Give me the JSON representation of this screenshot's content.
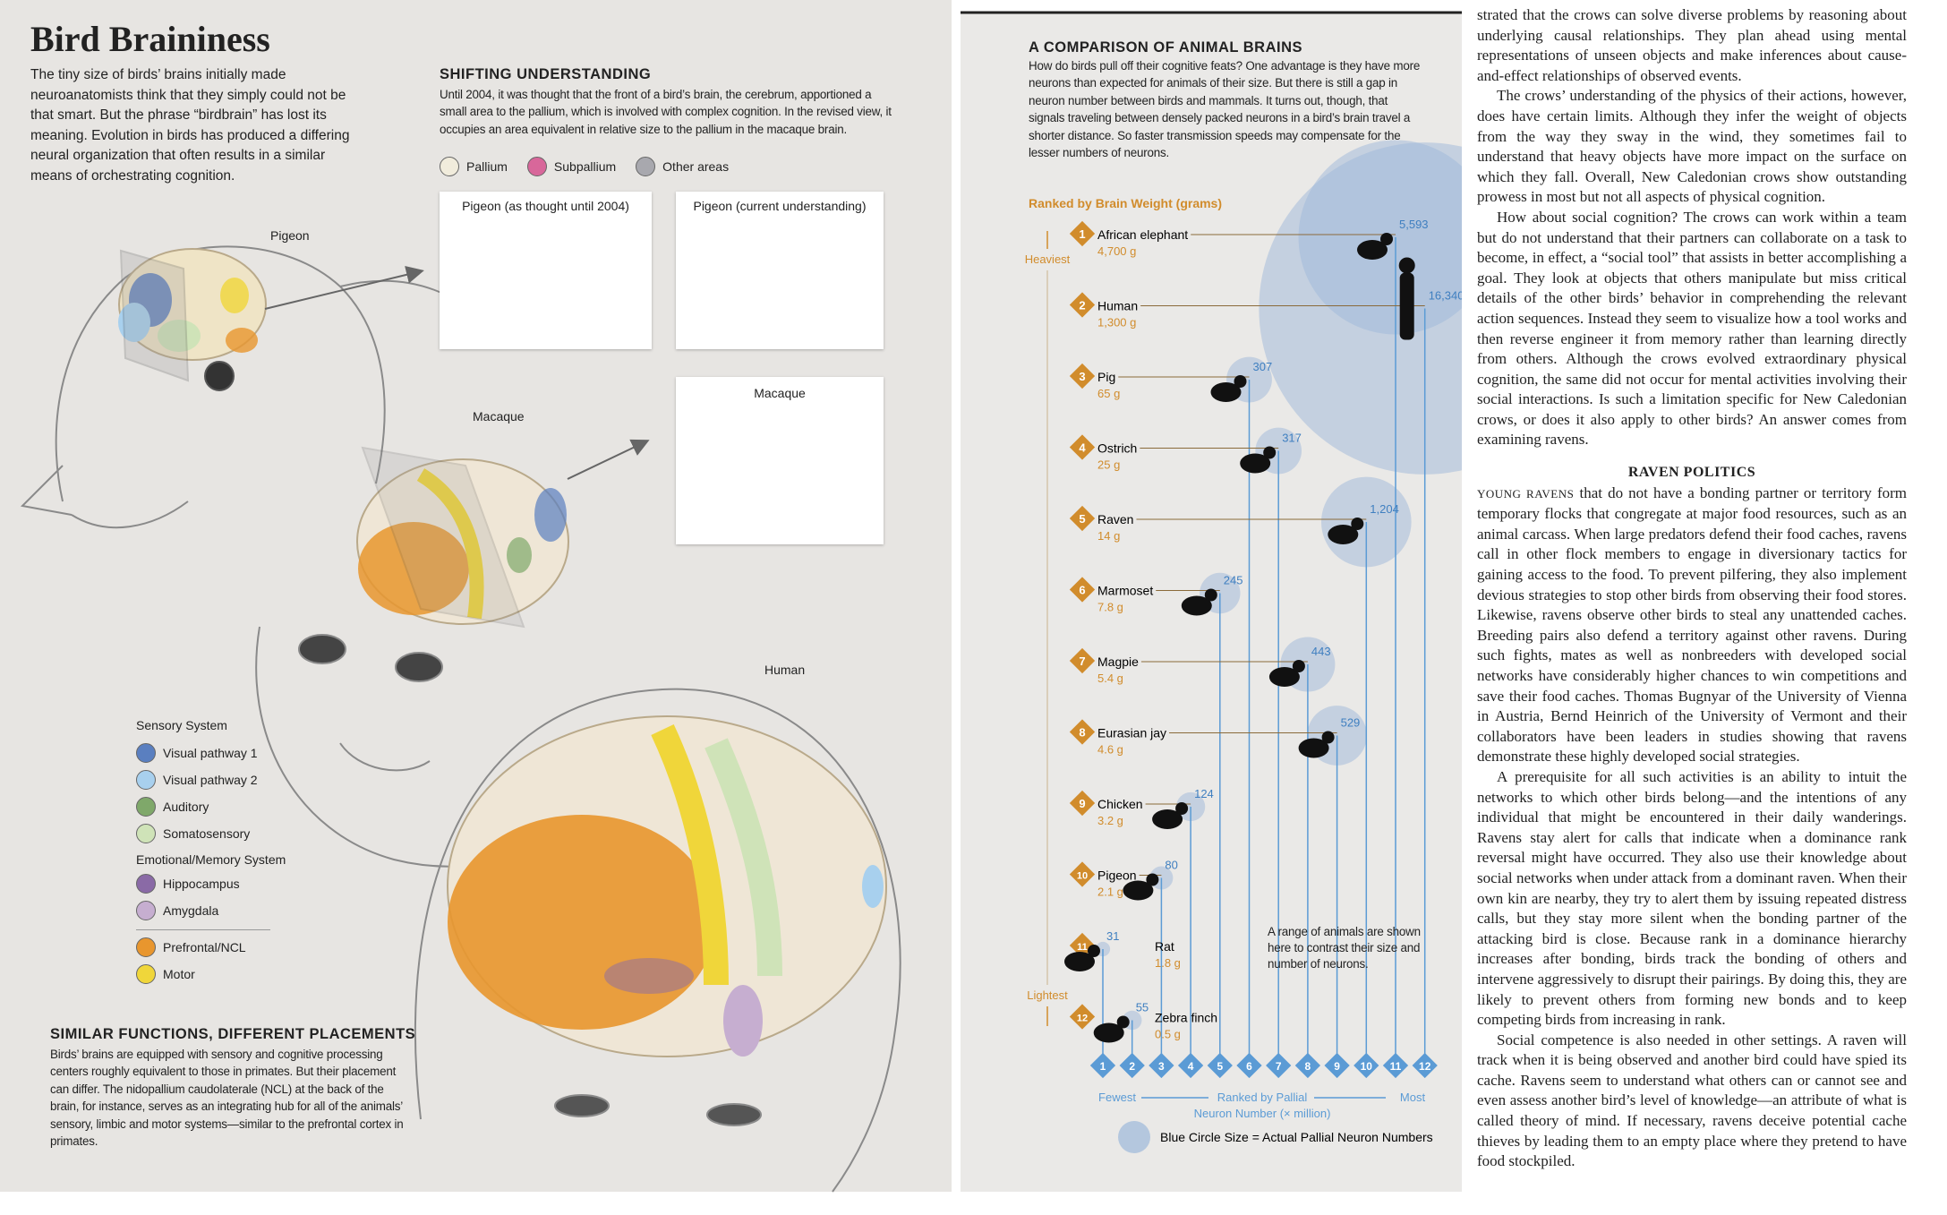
{
  "left": {
    "title": "Bird Braininess",
    "intro": "The tiny size of birds’ brains initially made neuroanatomists think that they simply could not be that smart. But the phrase “birdbrain” has lost its meaning. Evolution in birds has produced a differing neural organization that often results in a similar means of orchestrating cognition.",
    "shifting": {
      "heading": "SHIFTING UNDERSTANDING",
      "text": "Until 2004, it was thought that the front of a bird’s brain, the cerebrum, apportioned a small area to the pallium, which is involved with complex cognition. In the revised view, it occupies an area equivalent in relative size to the pallium in the macaque brain.",
      "legend": [
        {
          "label": "Pallium",
          "color": "#f1ecdc"
        },
        {
          "label": "Subpallium",
          "color": "#d8679a"
        },
        {
          "label": "Other areas",
          "color": "#a8a8ae"
        }
      ],
      "panels": [
        "Pigeon (as thought until 2004)",
        "Pigeon (current understanding)",
        "Macaque"
      ]
    },
    "labels": [
      "Pigeon",
      "Macaque",
      "Human"
    ],
    "key": {
      "sensory_heading": "Sensory System",
      "sensory": [
        {
          "label": "Visual pathway 1",
          "color": "#5a7fc0"
        },
        {
          "label": "Visual pathway 2",
          "color": "#a8d0ee"
        },
        {
          "label": "Auditory",
          "color": "#7fa86a"
        },
        {
          "label": "Somatosensory",
          "color": "#cfe3b8"
        }
      ],
      "emotional_heading": "Emotional/Memory System",
      "emotional": [
        {
          "label": "Hippocampus",
          "color": "#8a6aa6"
        },
        {
          "label": "Amygdala",
          "color": "#c6aed0"
        }
      ],
      "other": [
        {
          "label": "Prefrontal/NCL",
          "color": "#e8962e"
        },
        {
          "label": "Motor",
          "color": "#f0d63a"
        }
      ]
    },
    "similar": {
      "heading": "SIMILAR FUNCTIONS, DIFFERENT PLACEMENTS",
      "text": "Birds’ brains are equipped with sensory and cognitive processing centers roughly equivalent to those in primates. But their placement can differ. The nidopallium caudolaterale (NCL) at the back of the brain, for instance, serves as an integrating hub for all of the animals’ sensory, limbic and motor systems—similar to the prefrontal cortex in primates."
    }
  },
  "middle": {
    "heading": "A COMPARISON OF ANIMAL BRAINS",
    "text": "How do birds pull off their cognitive feats? One advantage is they have more neurons than expected for animals of their size. But there is still a gap in neuron number between birds and mammals. It turns out, though, that signals traveling between densely packed neurons in a bird’s brain travel a shorter distance. So faster transmission speeds may compensate for the lesser numbers of neurons.",
    "ranked_by": "Ranked by Brain Weight (grams)",
    "heaviest": "Heaviest",
    "lightest": "Lightest",
    "animals": [
      {
        "rank": 1,
        "name": "African elephant",
        "weight": "4,700 g",
        "neurons": {
          "value": 5593,
          "label": "5,593"
        },
        "pallial_rank": 11
      },
      {
        "rank": 2,
        "name": "Human",
        "weight": "1,300 g",
        "neurons": {
          "value": 16340,
          "label": "16,340"
        },
        "pallial_rank": 12
      },
      {
        "rank": 3,
        "name": "Pig",
        "weight": "65 g",
        "neurons": 307,
        "pallial_rank": 6
      },
      {
        "rank": 4,
        "name": "Ostrich",
        "weight": "25 g",
        "neurons": 317,
        "pallial_rank": 7
      },
      {
        "rank": 5,
        "name": "Raven",
        "weight": "14 g",
        "neurons": {
          "value": 1204,
          "label": "1,204"
        },
        "pallial_rank": 10
      },
      {
        "rank": 6,
        "name": "Marmoset",
        "weight": "7.8 g",
        "neurons": 245,
        "pallial_rank": 5
      },
      {
        "rank": 7,
        "name": "Magpie",
        "weight": "5.4 g",
        "neurons": 443,
        "pallial_rank": 8
      },
      {
        "rank": 8,
        "name": "Eurasian jay",
        "weight": "4.6 g",
        "neurons": 529,
        "pallial_rank": 9
      },
      {
        "rank": 9,
        "name": "Chicken",
        "weight": "3.2 g",
        "neurons": 124,
        "pallial_rank": 4
      },
      {
        "rank": 10,
        "name": "Pigeon",
        "weight": "2.1 g",
        "neurons": 80,
        "pallial_rank": 3
      },
      {
        "rank": 11,
        "name": "Rat",
        "weight": "1.8 g",
        "neurons": 31,
        "pallial_rank": 1
      },
      {
        "rank": 12,
        "name": "Zebra finch",
        "weight": "0.5 g",
        "neurons": 55,
        "pallial_rank": 2
      }
    ],
    "pallial_ranks": [
      1,
      2,
      3,
      4,
      5,
      6,
      7,
      8,
      9,
      10,
      11,
      12
    ],
    "fewest": "Fewest",
    "most": "Most",
    "axis_label_1": "Ranked by Pallial",
    "axis_label_2": "Neuron Number (× million)",
    "note": "A range of animals are shown here to contrast their size and number of neurons.",
    "circle_key": "Blue Circle Size = Actual Pallial Neuron Numbers"
  },
  "right": {
    "paragraphs_1": [
      "strated that the crows can solve diverse problems by reasoning about underlying causal relationships. They plan ahead using mental representations of unseen objects and make inferences about cause-and-effect relationships of observed events.",
      "The crows’ understanding of the physics of their actions, however, does have certain limits. Although they infer the weight of objects from the way they sway in the wind, they sometimes fail to understand that heavy objects have more impact on the surface on which they fall. Overall, New Caledonian crows show outstanding prowess in most but not all aspects of physical cognition.",
      "How about social cognition? The crows can work within a team but do not understand that their partners can collaborate on a task to become, in effect, a “social tool” that assists in better accomplishing a goal. They look at objects that others manipulate but miss critical details of the other birds’ behavior in comprehending the relevant action sequences. Instead they seem to visualize how a tool works and then reverse engineer it from memory rather than learning directly from others. Although the crows evolved extraordinary physical cognition, the same did not occur for mental activities involving their social interactions. Is such a limitation specific for New Caledonian crows, or does it also apply to other birds? An answer comes from examining ravens."
    ],
    "heading": "RAVEN POLITICS",
    "lead": "YOUNG RAVENS",
    "paragraphs_2": [
      "that do not have a bonding partner or territory form temporary flocks that congregate at major food resources, such as an animal carcass. When large predators defend their food caches, ravens call in other flock members to engage in diversionary tactics for gaining access to the food. To prevent pilfering, they also implement devious strategies to stop other birds from observing their food stores. Likewise, ravens observe other birds to steal any unattended caches. Breeding pairs also defend a territory against other ravens. During such fights, mates as well as nonbreeders with developed social networks have considerably higher chances to win competitions and save their food caches. Thomas Bugnyar of the University of Vienna in Austria, Bernd Heinrich of the University of Vermont and their collaborators have been leaders in studies showing that ravens demonstrate these highly developed social strategies.",
      "A prerequisite for all such activities is an ability to intuit the networks to which other birds belong—and the intentions of any individual that might be encountered in their daily wanderings. Ravens stay alert for calls that indicate when a dominance rank reversal might have occurred. They also use their knowledge about social networks when under attack from a dominant raven. When their own kin are nearby, they try to alert them by issuing repeated distress calls, but they stay more silent when the bonding partner of the attacking bird is close. Because rank in a dominance hierarchy increases after bonding, birds track the bonding of others and intervene aggressively to disrupt their pairings. By doing this, they are likely to prevent others from forming new bonds and to keep competing birds from increasing in rank.",
      "Social competence is also needed in other settings. A raven will track when it is being observed and another bird could have spied its cache. Ravens seem to understand what others can or cannot see and even assess another bird’s level of knowledge—an attribute of what is called theory of mind. If necessary, ravens deceive potential cache thieves by leading them to an empty place where they pretend to have food stockpiled."
    ]
  }
}
